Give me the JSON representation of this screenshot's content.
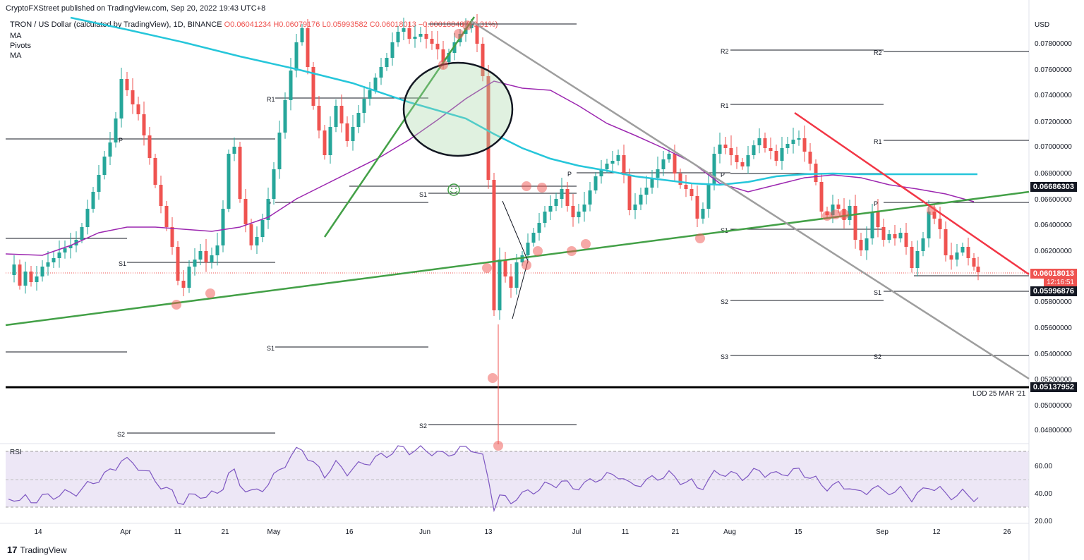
{
  "header": {
    "publisher": "CryptoFXStreet published on TradingView.com, Sep 20, 2022 19:43 UTC+8"
  },
  "legend": {
    "symbol": "TRON / US Dollar (calculated by TradingView), 1D, BINANCE",
    "ohlc": "O0.06041234  H0.06079176  L0.05993582  C0.06018013  −0.00018848 (−0.31%)",
    "indicators": [
      "MA",
      "Pivots",
      "MA"
    ]
  },
  "footer": {
    "brand": "TradingView"
  },
  "chart_data": {
    "type": "line",
    "title": "TRON / US Dollar (calculated by TradingView), 1D, BINANCE",
    "currency_label": "USD",
    "y_ticks": [
      "0.07800000",
      "0.07600000",
      "0.07400000",
      "0.07200000",
      "0.07000000",
      "0.06800000",
      "0.06600000",
      "0.06400000",
      "0.06200000",
      "0.05800000",
      "0.05600000",
      "0.05400000",
      "0.05200000",
      "0.05000000",
      "0.04800000"
    ],
    "x_ticks": [
      "14",
      "Apr",
      "11",
      "21",
      "May",
      "16",
      "Jun",
      "13",
      "Jul",
      "11",
      "21",
      "Aug",
      "15",
      "Sep",
      "12",
      "26"
    ],
    "price_tags": [
      {
        "label": "0.06686303",
        "style": "dark"
      },
      {
        "label": "0.06018013",
        "style": "red"
      },
      {
        "label": "12:16:51",
        "style": "red"
      },
      {
        "label": "0.05996876",
        "style": "dark"
      },
      {
        "label": "0.05137952",
        "style": "dark"
      }
    ],
    "annotation": "LOD 25 MAR '21",
    "pivot_labels": [
      "R2",
      "R1",
      "P",
      "S1",
      "S2",
      "S3"
    ],
    "rsi": {
      "label": "RSI",
      "ticks": [
        "60.00",
        "40.00",
        "20.00"
      ]
    },
    "colors": {
      "up": "#26a69a",
      "down": "#ef5350",
      "ma_fast": "#9c27b0",
      "ma_slow": "#26c6da",
      "trend_green": "#43a047",
      "trend_red": "#f23645",
      "trend_gray": "#9e9e9e",
      "rsi_line": "#7e57c2"
    }
  }
}
